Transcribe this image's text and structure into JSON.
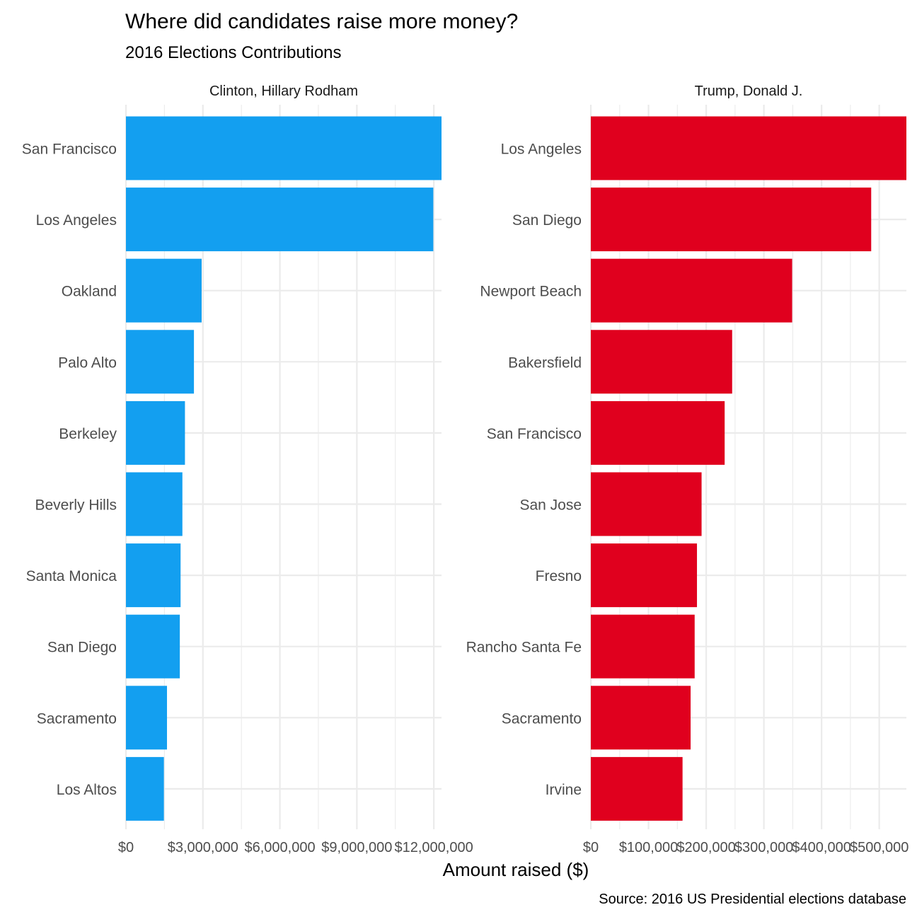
{
  "chart_data": {
    "type": "bar",
    "orientation": "horizontal",
    "title": "Where did candidates raise more money?",
    "subtitle": "2016 Elections Contributions",
    "xlabel": "Amount raised ($)",
    "ylabel": "",
    "caption": "Source: 2016 US Presidential elections database",
    "grid": true,
    "legend": "none",
    "panels": [
      {
        "name": "Clinton, Hillary Rodham",
        "color": "#139ff0",
        "xlim": [
          0,
          12300000
        ],
        "x_ticks": [
          0,
          3000000,
          6000000,
          9000000,
          12000000
        ],
        "x_tick_labels": [
          "$0",
          "$3,000,000",
          "$6,000,000",
          "$9,000,000",
          "$12,000,000"
        ],
        "categories": [
          "San Francisco",
          "Los Angeles",
          "Oakland",
          "Palo Alto",
          "Berkeley",
          "Beverly Hills",
          "Santa Monica",
          "San Diego",
          "Sacramento",
          "Los Altos"
        ],
        "values": [
          12300000,
          11980000,
          2950000,
          2650000,
          2300000,
          2200000,
          2130000,
          2100000,
          1600000,
          1480000
        ]
      },
      {
        "name": "Trump, Donald J.",
        "color": "#e0001e",
        "xlim": [
          0,
          547000
        ],
        "x_ticks": [
          0,
          100000,
          200000,
          300000,
          400000,
          500000
        ],
        "x_tick_labels": [
          "$0",
          "$100,000",
          "$200,000",
          "$300,000",
          "$400,000",
          "$500,000"
        ],
        "categories": [
          "Los Angeles",
          "San Diego",
          "Newport Beach",
          "Bakersfield",
          "San Francisco",
          "San Jose",
          "Fresno",
          "Rancho Santa Fe",
          "Sacramento",
          "Irvine"
        ],
        "values": [
          547000,
          486000,
          349000,
          245000,
          232000,
          192000,
          184000,
          180000,
          173000,
          159000
        ]
      }
    ]
  }
}
